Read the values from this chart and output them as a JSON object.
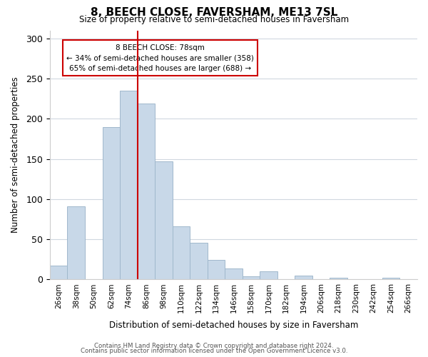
{
  "title": "8, BEECH CLOSE, FAVERSHAM, ME13 7SL",
  "subtitle": "Size of property relative to semi-detached houses in Faversham",
  "xlabel": "Distribution of semi-detached houses by size in Faversham",
  "ylabel": "Number of semi-detached properties",
  "bin_labels": [
    "26sqm",
    "38sqm",
    "50sqm",
    "62sqm",
    "74sqm",
    "86sqm",
    "98sqm",
    "110sqm",
    "122sqm",
    "134sqm",
    "146sqm",
    "158sqm",
    "170sqm",
    "182sqm",
    "194sqm",
    "206sqm",
    "218sqm",
    "230sqm",
    "242sqm",
    "254sqm",
    "266sqm"
  ],
  "bar_heights": [
    17,
    91,
    0,
    190,
    235,
    219,
    147,
    66,
    46,
    24,
    14,
    4,
    10,
    0,
    5,
    0,
    2,
    0,
    0,
    2,
    0
  ],
  "bar_color": "#c8d8e8",
  "bar_edge_color": "#a0b8cc",
  "marker_bin_index": 4,
  "marker_color": "#cc0000",
  "annotation_title": "8 BEECH CLOSE: 78sqm",
  "annotation_line1": "← 34% of semi-detached houses are smaller (358)",
  "annotation_line2": "65% of semi-detached houses are larger (688) →",
  "annotation_box_color": "#ffffff",
  "annotation_box_edge": "#cc0000",
  "ylim": [
    0,
    310
  ],
  "yticks": [
    0,
    50,
    100,
    150,
    200,
    250,
    300
  ],
  "footer1": "Contains HM Land Registry data © Crown copyright and database right 2024.",
  "footer2": "Contains public sector information licensed under the Open Government Licence v3.0.",
  "background_color": "#ffffff",
  "grid_color": "#d0d8e0"
}
